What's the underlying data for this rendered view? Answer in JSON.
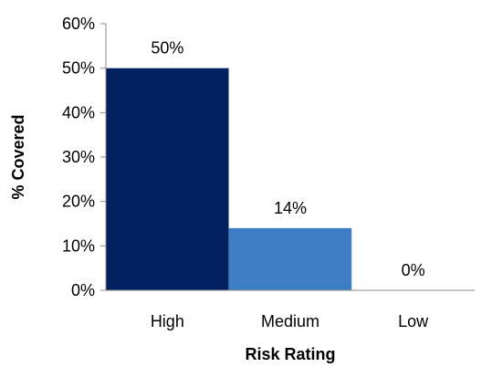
{
  "chart_data": {
    "type": "bar",
    "categories": [
      "High",
      "Medium",
      "Low"
    ],
    "values": [
      50,
      14,
      0
    ],
    "value_labels": [
      "50%",
      "14%",
      "0%"
    ],
    "xlabel": "Risk Rating",
    "ylabel": "% Covered",
    "ylim": [
      0,
      60
    ],
    "yticks": [
      0,
      10,
      20,
      30,
      40,
      50,
      60
    ],
    "ytick_labels": [
      "0%",
      "10%",
      "20%",
      "30%",
      "40%",
      "50%",
      "60%"
    ],
    "grid": false,
    "legend": "none",
    "bar_colors": [
      "#002060",
      "#3c7dc4",
      "#a6a6a6"
    ]
  }
}
